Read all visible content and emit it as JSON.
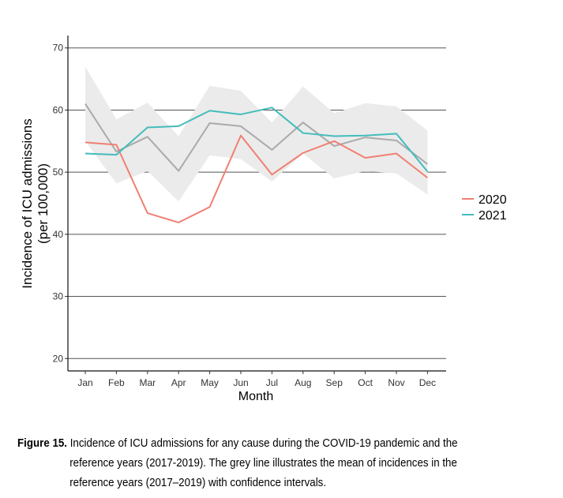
{
  "chart_data": {
    "type": "line",
    "xlabel": "Month",
    "ylabel": "Incidence of ICU admissions",
    "ylabel_sub": "(per 100,000)",
    "categories": [
      "Jan",
      "Feb",
      "Mar",
      "Apr",
      "May",
      "Jun",
      "Jul",
      "Aug",
      "Sep",
      "Oct",
      "Nov",
      "Dec"
    ],
    "ylim": [
      18,
      72
    ],
    "yticks": [
      20,
      30,
      40,
      50,
      60,
      70
    ],
    "ytick_labels": [
      "20",
      "30",
      "40",
      "50",
      "60",
      "70"
    ],
    "series": [
      {
        "name": "2020",
        "color": "#f07f72",
        "values": [
          54.8,
          54.4,
          43.4,
          41.9,
          44.4,
          55.9,
          49.6,
          53.1,
          55.0,
          52.3,
          53.0,
          49.1
        ]
      },
      {
        "name": "2021",
        "color": "#44bcbc",
        "values": [
          53.0,
          52.8,
          57.2,
          57.4,
          59.9,
          59.3,
          60.4,
          56.3,
          55.8,
          55.9,
          56.2,
          50.1
        ]
      }
    ],
    "reference": {
      "name": "reference years (2017-2019)",
      "color": "#aaaaaa",
      "band_color": "#ebebeb",
      "mean": [
        61.0,
        53.3,
        55.7,
        50.2,
        57.9,
        57.4,
        53.6,
        58.0,
        54.2,
        55.6,
        55.1,
        51.3
      ],
      "upper": [
        67.0,
        58.5,
        61.2,
        55.8,
        63.9,
        63.1,
        58.0,
        63.8,
        59.5,
        61.1,
        60.6,
        56.7
      ],
      "lower": [
        55.0,
        48.2,
        50.2,
        45.3,
        52.7,
        52.1,
        48.5,
        53.0,
        49.0,
        50.2,
        49.8,
        46.4
      ]
    },
    "legend_position": "right"
  },
  "caption": {
    "label": "Figure 15.",
    "line1": "Incidence of ICU admissions for any cause during the COVID-19 pandemic and the",
    "line2": "reference years (2017-2019). The grey line illustrates the mean of incidences in the",
    "line3": "reference years (2017–2019) with confidence intervals."
  }
}
